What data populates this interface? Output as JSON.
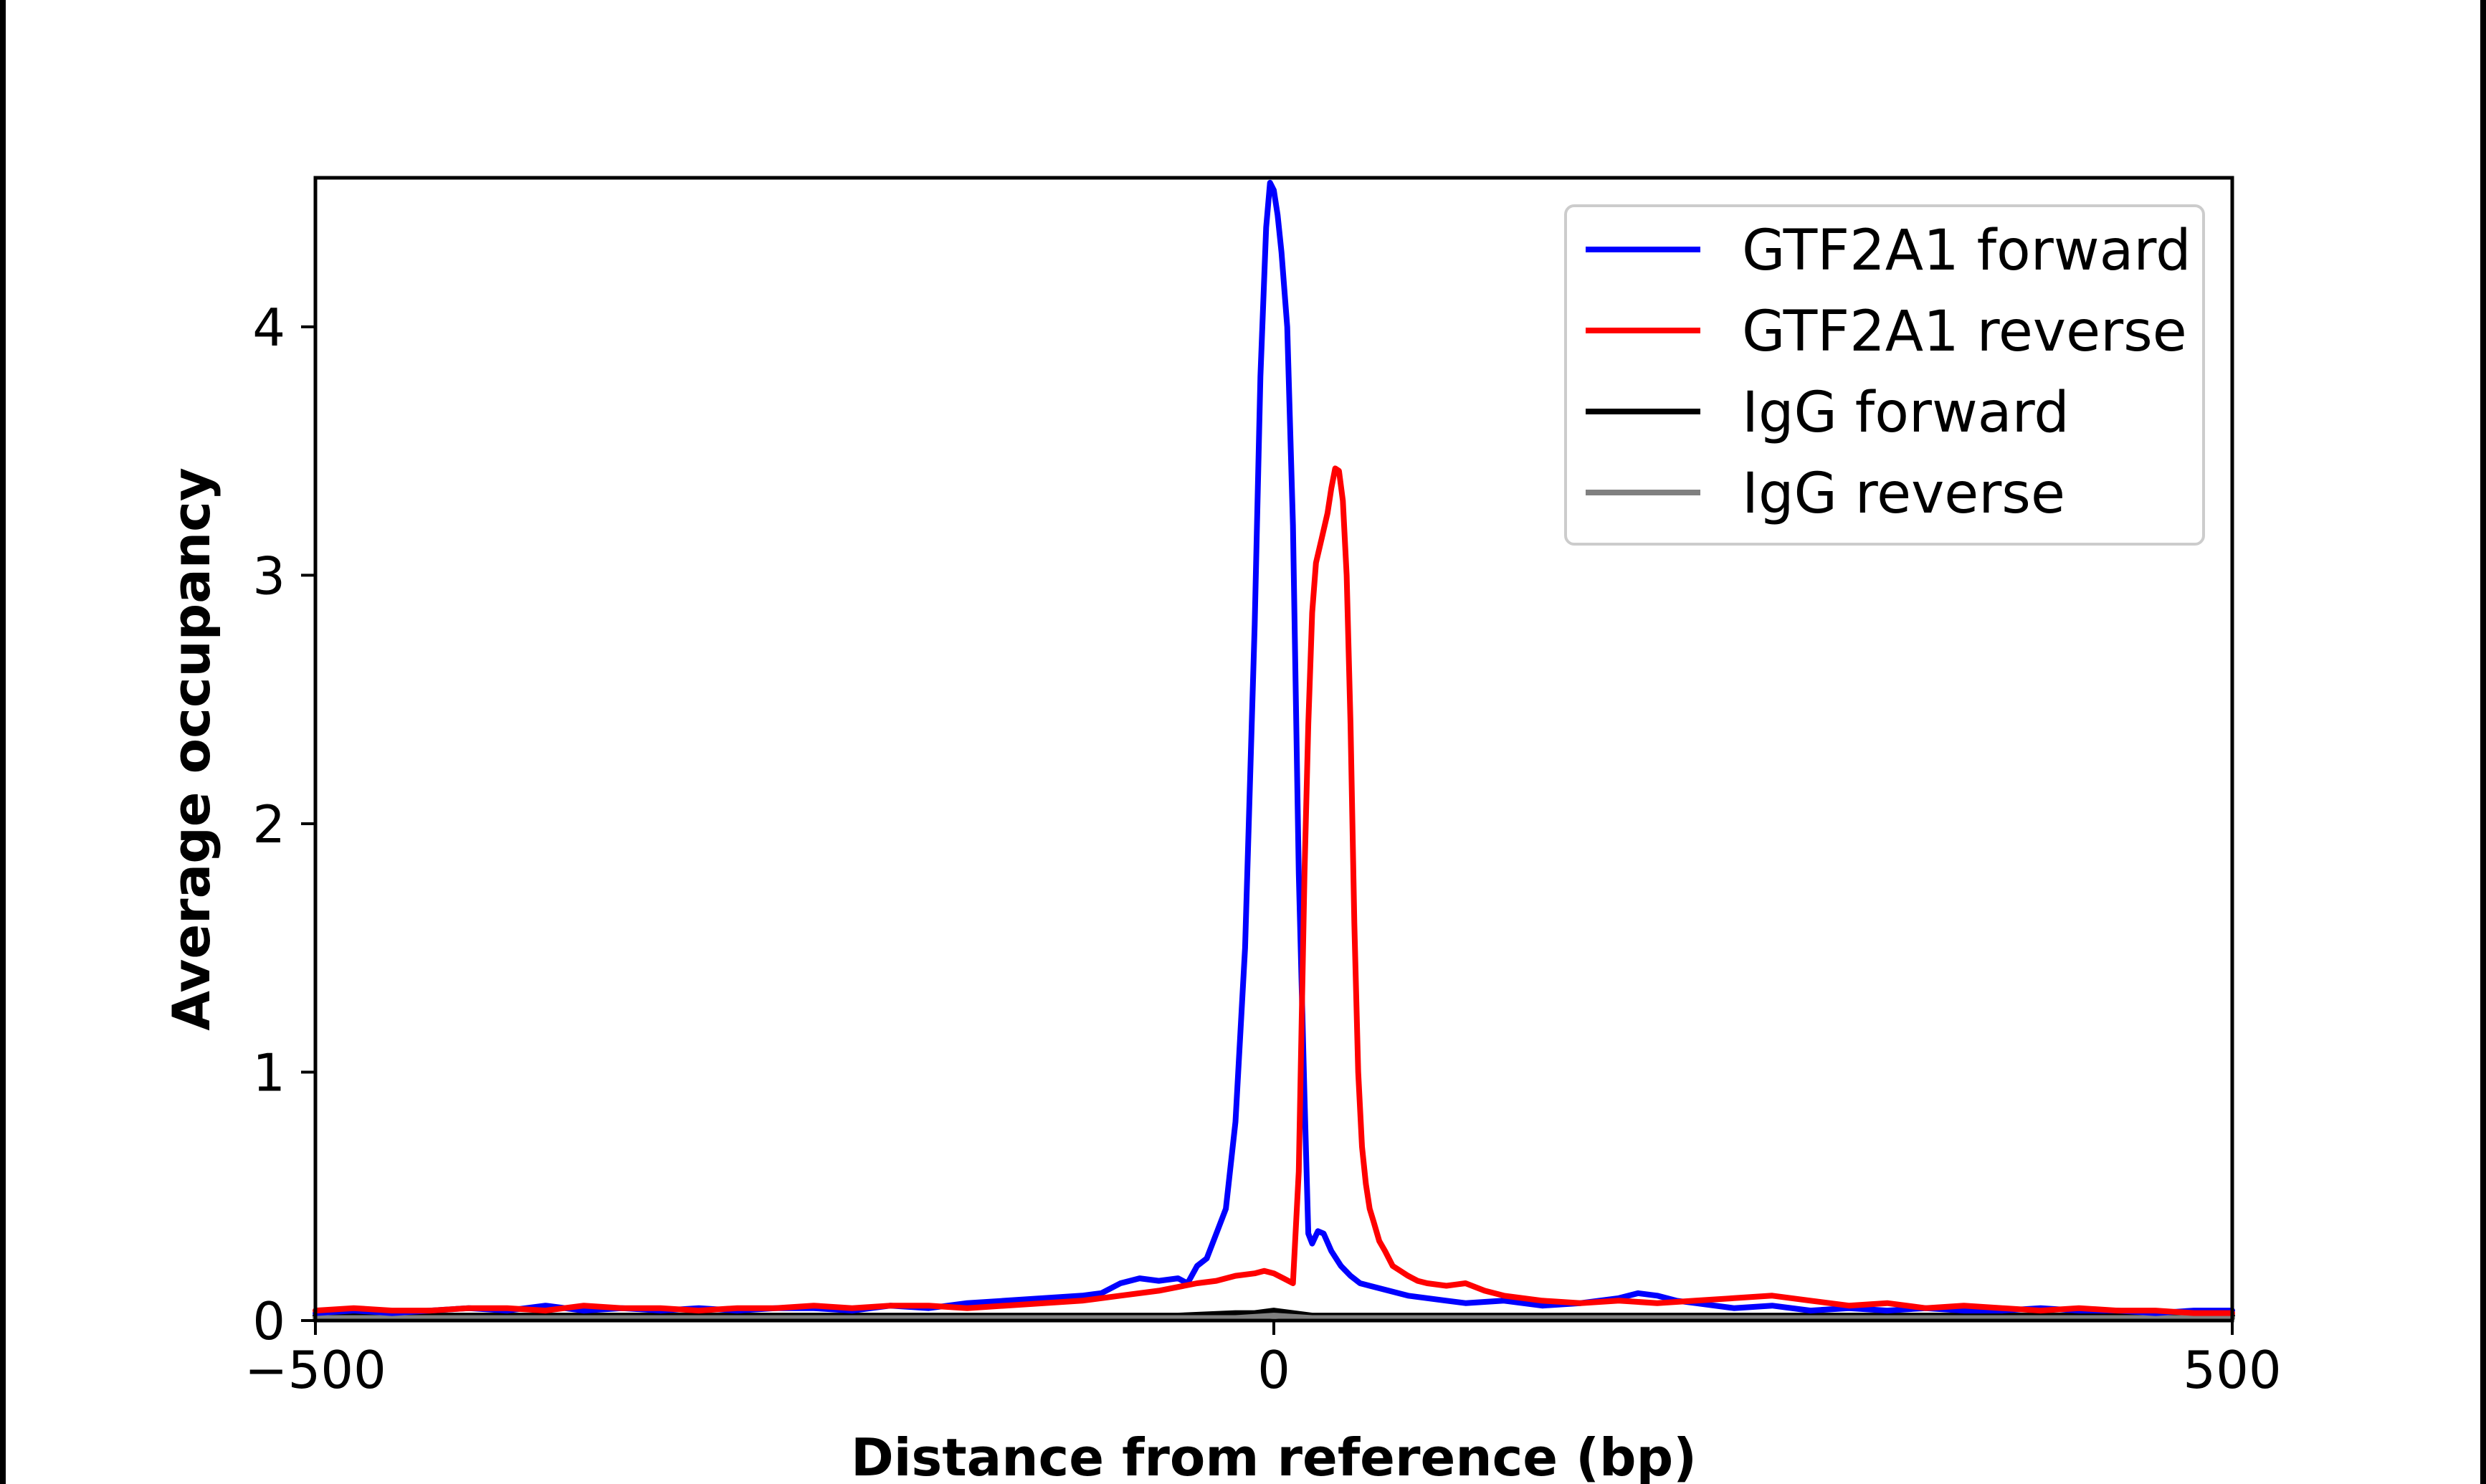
{
  "chart_data": {
    "type": "line",
    "title": "",
    "xlabel": "Distance from reference (bp)",
    "ylabel": "Average occupancy",
    "xlim": [
      -500,
      500
    ],
    "ylim": [
      0,
      4.6
    ],
    "xticks": [
      -500,
      0,
      500
    ],
    "xtick_labels": [
      "−500",
      "0",
      "500"
    ],
    "yticks": [
      0,
      1,
      2,
      3,
      4
    ],
    "ytick_labels": [
      "0",
      "1",
      "2",
      "3",
      "4"
    ],
    "grid": false,
    "legend_position": "top-right",
    "series": [
      {
        "name": "GTF2A1 forward",
        "color": "#0000ff",
        "x": [
          -500,
          -480,
          -460,
          -440,
          -420,
          -400,
          -380,
          -360,
          -340,
          -320,
          -300,
          -280,
          -260,
          -240,
          -220,
          -200,
          -180,
          -160,
          -140,
          -120,
          -100,
          -90,
          -80,
          -70,
          -60,
          -50,
          -45,
          -40,
          -35,
          -30,
          -25,
          -20,
          -15,
          -10,
          -7,
          -4,
          -2,
          0,
          2,
          4,
          7,
          10,
          13,
          16,
          18,
          20,
          23,
          26,
          30,
          35,
          40,
          45,
          50,
          60,
          70,
          80,
          90,
          100,
          120,
          140,
          160,
          180,
          190,
          200,
          210,
          220,
          240,
          260,
          280,
          300,
          320,
          340,
          360,
          380,
          400,
          420,
          440,
          460,
          480,
          500
        ],
        "values": [
          0.03,
          0.04,
          0.03,
          0.04,
          0.05,
          0.04,
          0.06,
          0.04,
          0.05,
          0.04,
          0.05,
          0.04,
          0.05,
          0.05,
          0.04,
          0.06,
          0.05,
          0.07,
          0.08,
          0.09,
          0.1,
          0.11,
          0.15,
          0.17,
          0.16,
          0.17,
          0.15,
          0.22,
          0.25,
          0.35,
          0.45,
          0.8,
          1.5,
          2.8,
          3.8,
          4.4,
          4.58,
          4.55,
          4.45,
          4.3,
          4.0,
          3.2,
          1.8,
          0.9,
          0.35,
          0.31,
          0.36,
          0.35,
          0.28,
          0.22,
          0.18,
          0.15,
          0.14,
          0.12,
          0.1,
          0.09,
          0.08,
          0.07,
          0.08,
          0.06,
          0.07,
          0.09,
          0.11,
          0.1,
          0.08,
          0.07,
          0.05,
          0.06,
          0.04,
          0.05,
          0.04,
          0.05,
          0.04,
          0.04,
          0.05,
          0.04,
          0.04,
          0.03,
          0.04,
          0.04
        ]
      },
      {
        "name": "GTF2A1 reverse",
        "color": "#ff0000",
        "x": [
          -500,
          -480,
          -460,
          -440,
          -420,
          -400,
          -380,
          -360,
          -340,
          -320,
          -300,
          -280,
          -260,
          -240,
          -220,
          -200,
          -180,
          -160,
          -140,
          -120,
          -100,
          -80,
          -60,
          -40,
          -30,
          -20,
          -10,
          -5,
          0,
          5,
          10,
          13,
          16,
          18,
          20,
          22,
          25,
          28,
          30,
          32,
          34,
          36,
          38,
          40,
          42,
          44,
          46,
          48,
          50,
          52,
          55,
          58,
          62,
          66,
          70,
          75,
          80,
          90,
          100,
          110,
          120,
          140,
          160,
          180,
          200,
          220,
          240,
          260,
          280,
          300,
          320,
          340,
          360,
          380,
          400,
          420,
          440,
          460,
          480,
          500
        ],
        "values": [
          0.04,
          0.05,
          0.04,
          0.04,
          0.05,
          0.05,
          0.04,
          0.06,
          0.05,
          0.05,
          0.04,
          0.05,
          0.05,
          0.06,
          0.05,
          0.06,
          0.06,
          0.05,
          0.06,
          0.07,
          0.08,
          0.1,
          0.12,
          0.15,
          0.16,
          0.18,
          0.19,
          0.2,
          0.19,
          0.17,
          0.15,
          0.6,
          1.8,
          2.4,
          2.85,
          3.05,
          3.15,
          3.25,
          3.35,
          3.43,
          3.42,
          3.3,
          3.0,
          2.4,
          1.6,
          1.0,
          0.7,
          0.55,
          0.45,
          0.4,
          0.32,
          0.28,
          0.22,
          0.2,
          0.18,
          0.16,
          0.15,
          0.14,
          0.15,
          0.12,
          0.1,
          0.08,
          0.07,
          0.08,
          0.07,
          0.08,
          0.09,
          0.1,
          0.08,
          0.06,
          0.07,
          0.05,
          0.06,
          0.05,
          0.04,
          0.05,
          0.04,
          0.04,
          0.03,
          0.03
        ]
      },
      {
        "name": "IgG forward",
        "color": "#000000",
        "x": [
          -500,
          -400,
          -300,
          -200,
          -100,
          -50,
          -20,
          -10,
          0,
          10,
          20,
          50,
          100,
          200,
          300,
          400,
          500
        ],
        "values": [
          0.02,
          0.02,
          0.02,
          0.02,
          0.02,
          0.02,
          0.03,
          0.03,
          0.04,
          0.03,
          0.02,
          0.02,
          0.02,
          0.02,
          0.02,
          0.02,
          0.02
        ]
      },
      {
        "name": "IgG reverse",
        "color": "#808080",
        "x": [
          -500,
          -400,
          -300,
          -200,
          -100,
          -50,
          -20,
          0,
          20,
          50,
          100,
          200,
          300,
          400,
          500
        ],
        "values": [
          0.01,
          0.01,
          0.01,
          0.01,
          0.01,
          0.01,
          0.01,
          0.02,
          0.01,
          0.01,
          0.01,
          0.01,
          0.01,
          0.01,
          0.01
        ]
      }
    ]
  }
}
